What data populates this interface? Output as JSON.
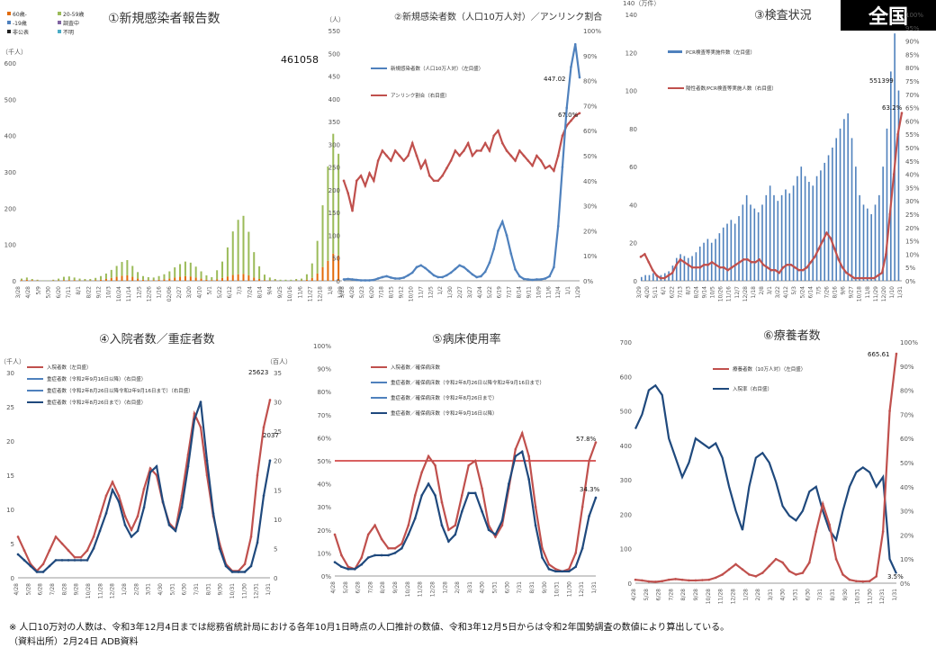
{
  "badge": "全国",
  "footnote": "※ 人口10万対の人数は、令和3年12月4日までは総務省統計局における各年10月1日時点の人口推計の数値、令和3年12月5日からは令和2年国勢調査の数値により算出している。",
  "source": "（資料出所）2月24日 ADB資料",
  "colors": {
    "red": "#c0504d",
    "blue": "#4f81bd",
    "green": "#9bbb59",
    "orange": "#e26b0a",
    "dark": "#1f497d"
  },
  "chart_data": [
    {
      "type": "bar",
      "title": "①新規感染者報告数",
      "ylabel": "（千人）",
      "ylim": [
        0,
        600
      ],
      "yticks": [
        "0",
        "100",
        "200",
        "300",
        "400",
        "500",
        "600"
      ],
      "xticks": [
        "3/28",
        "4/28",
        "5/9",
        "5/30",
        "6/20",
        "7/11",
        "8/1",
        "8/22",
        "9/12",
        "10/3",
        "10/24",
        "11/14",
        "12/5",
        "12/26",
        "1/16",
        "02/06",
        "2/27",
        "3/20",
        "4/10",
        "5/1",
        "5/22",
        "6/12",
        "7/3",
        "7/24",
        "8/14",
        "9/4",
        "9/25",
        "10/16",
        "11/6",
        "11/27",
        "12/18",
        "1/8",
        "1/29"
      ],
      "legend": [
        "60歳-",
        "20-59歳",
        "-19歳",
        "調査中",
        "非公表",
        "不明"
      ],
      "annotation": "461058",
      "series": [
        {
          "name": "20-59歳",
          "values": [
            4,
            6,
            3,
            2,
            1,
            1,
            2,
            5,
            9,
            10,
            7,
            5,
            4,
            4,
            6,
            10,
            15,
            22,
            30,
            38,
            42,
            30,
            18,
            10,
            8,
            7,
            10,
            14,
            20,
            28,
            35,
            40,
            38,
            30,
            20,
            12,
            8,
            25,
            45,
            80,
            120,
            150,
            160,
            120,
            70,
            35,
            15,
            8,
            4,
            3,
            3,
            3,
            4,
            5,
            15,
            40,
            90,
            170,
            260,
            330,
            280
          ]
        },
        {
          "name": "60歳-",
          "values": [
            2,
            3,
            2,
            1,
            0,
            0,
            1,
            1,
            2,
            2,
            2,
            1,
            1,
            1,
            2,
            3,
            5,
            8,
            11,
            14,
            15,
            11,
            6,
            3,
            2,
            2,
            3,
            4,
            6,
            9,
            11,
            13,
            12,
            9,
            6,
            3,
            2,
            4,
            8,
            12,
            16,
            18,
            19,
            15,
            9,
            5,
            2,
            1,
            1,
            0,
            0,
            0,
            1,
            1,
            3,
            8,
            20,
            38,
            55,
            75,
            70
          ]
        }
      ]
    },
    {
      "type": "line",
      "title": "②新規感染者数（人口10万人対）／アンリンク割合",
      "ylabel": "（人）",
      "ylim": [
        0,
        550
      ],
      "yticks": [
        "0",
        "50",
        "100",
        "150",
        "200",
        "250",
        "300",
        "350",
        "400",
        "450",
        "500",
        "550"
      ],
      "y2ticks": [
        "0%",
        "10%",
        "20%",
        "30%",
        "40%",
        "50%",
        "60%",
        "70%",
        "80%",
        "90%",
        "100%"
      ],
      "xticks": [
        "3/28",
        "4/28",
        "5/23",
        "6/20",
        "7/18",
        "8/15",
        "9/12",
        "10/10",
        "11/7",
        "12/5",
        "1/2",
        "1/30",
        "2/27",
        "3/27",
        "4/24",
        "5/22",
        "6/19",
        "7/17",
        "8/14",
        "9/11",
        "10/9",
        "11/6",
        "12/4",
        "1/1",
        "1/29"
      ],
      "legend": [
        "新規感染者数（人口10万人対）（左目盛）",
        "アンリンク割合（右目盛）"
      ],
      "annotations": [
        "447.02",
        "67.0%"
      ],
      "series": [
        {
          "name": "新規感染者数（人口10万人対）（左目盛）",
          "values": [
            3,
            4,
            3,
            2,
            1,
            1,
            1,
            2,
            5,
            8,
            10,
            7,
            5,
            5,
            7,
            12,
            18,
            30,
            34,
            28,
            20,
            12,
            8,
            8,
            12,
            18,
            26,
            34,
            30,
            22,
            14,
            8,
            10,
            20,
            40,
            70,
            110,
            130,
            100,
            60,
            25,
            10,
            4,
            3,
            2,
            3,
            3,
            5,
            10,
            30,
            120,
            250,
            380,
            470,
            520,
            447
          ]
        },
        {
          "name": "アンリンク割合（右目盛）",
          "values": [
            40,
            35,
            28,
            40,
            42,
            38,
            43,
            40,
            48,
            52,
            50,
            48,
            52,
            50,
            48,
            50,
            55,
            50,
            45,
            48,
            42,
            40,
            40,
            42,
            45,
            48,
            52,
            50,
            52,
            55,
            50,
            52,
            52,
            55,
            52,
            58,
            60,
            55,
            52,
            50,
            48,
            52,
            50,
            48,
            46,
            50,
            48,
            45,
            46,
            44,
            50,
            58,
            62,
            64,
            66,
            67
          ]
        }
      ]
    },
    {
      "type": "bar",
      "title": "③検査状況",
      "ylabel": "140（万件）",
      "ylim": [
        0,
        140
      ],
      "yticks": [
        "0",
        "20",
        "40",
        "60",
        "80",
        "100",
        "120",
        "140"
      ],
      "y2ticks": [
        "0%",
        "5%",
        "10%",
        "15%",
        "20%",
        "25%",
        "30%",
        "35%",
        "40%",
        "45%",
        "50%",
        "55%",
        "60%",
        "65%",
        "70%",
        "75%",
        "80%",
        "85%",
        "90%",
        "95%",
        "100%"
      ],
      "xticks": [
        "3/29",
        "4/20",
        "5/11",
        "6/1",
        "6/22",
        "7/13",
        "8/3",
        "8/24",
        "9/14",
        "10/5",
        "10/26",
        "11/16",
        "12/7",
        "12/28",
        "1/18",
        "2/8",
        "3/1",
        "3/22",
        "4/12",
        "5/3",
        "5/24",
        "6/14",
        "7/5",
        "7/26",
        "8/16",
        "9/6",
        "9/27",
        "10/18",
        "11/8",
        "11/29",
        "12/20",
        "1/10",
        "1/31"
      ],
      "legend": [
        "PCR検査等実施件数（左目盛）",
        "陽性者数/PCR検査等実施人数（右目盛）"
      ],
      "annotations": [
        "551399",
        "63.2%"
      ],
      "series": [
        {
          "name": "PCR検査等実施件数（左目盛）",
          "values": [
            2,
            3,
            3,
            4,
            3,
            3,
            4,
            5,
            8,
            12,
            14,
            13,
            12,
            13,
            15,
            18,
            20,
            22,
            20,
            22,
            25,
            28,
            30,
            32,
            30,
            34,
            40,
            45,
            40,
            38,
            36,
            40,
            45,
            50,
            45,
            42,
            45,
            48,
            46,
            50,
            55,
            60,
            55,
            52,
            50,
            55,
            58,
            62,
            66,
            70,
            75,
            80,
            85,
            88,
            75,
            60,
            45,
            40,
            38,
            35,
            40,
            45,
            60,
            80,
            110,
            130,
            100
          ]
        },
        {
          "name": "陽性者数/PCR検査等実施人数（右目盛）",
          "values": [
            9,
            10,
            7,
            4,
            2,
            1,
            1,
            2,
            3,
            6,
            8,
            7,
            6,
            5,
            5,
            5,
            6,
            6,
            7,
            6,
            5,
            5,
            4,
            5,
            6,
            7,
            8,
            8,
            7,
            7,
            8,
            6,
            5,
            4,
            4,
            3,
            5,
            6,
            6,
            5,
            4,
            4,
            5,
            7,
            9,
            12,
            15,
            18,
            16,
            12,
            8,
            5,
            3,
            2,
            1,
            1,
            1,
            1,
            1,
            1,
            2,
            3,
            10,
            25,
            40,
            55,
            63
          ]
        }
      ]
    },
    {
      "type": "line",
      "title": "④入院者数／重症者数",
      "ylabel": "（千人）",
      "ylim": [
        0,
        30
      ],
      "yticks": [
        "0",
        "5",
        "10",
        "15",
        "20",
        "25",
        "30"
      ],
      "y2label": "（百人）",
      "y2ticks": [
        "0",
        "5",
        "10",
        "15",
        "20",
        "25",
        "30",
        "35"
      ],
      "xticks": [
        "4/28",
        "5/28",
        "6/28",
        "7/28",
        "8/28",
        "9/28",
        "10/28",
        "11/28",
        "12/28",
        "1/28",
        "2/28",
        "3/31",
        "4/30",
        "5/31",
        "6/30",
        "7/31",
        "8/31",
        "9/30",
        "10/31",
        "11/30",
        "12/31",
        "1/31"
      ],
      "legend": [
        "入院者数（左目盛）",
        "重症者数（令和2年9月16日以降）（右目盛）",
        "重症者数（令和2年8月26日以降令和2年9月16日まで）（右目盛）",
        "重症者数（令和2年8月26日まで）（右目盛）"
      ],
      "annotations": [
        "25623",
        "2037"
      ],
      "series": [
        {
          "name": "入院者数（左目盛）",
          "values": [
            6,
            4,
            2,
            1,
            2,
            4,
            6,
            5,
            4,
            3,
            3,
            4,
            6,
            9,
            12,
            14,
            12,
            9,
            7,
            9,
            13,
            16,
            15,
            11,
            8,
            7,
            12,
            18,
            24,
            22,
            15,
            9,
            5,
            2,
            1,
            1,
            2,
            6,
            15,
            22,
            26
          ]
        },
        {
          "name": "重症者数（令和2年9月16日以降）（右目盛）",
          "values": [
            4,
            3,
            2,
            1,
            1,
            2,
            3,
            3,
            3,
            3,
            3,
            3,
            5,
            8,
            11,
            15,
            13,
            9,
            7,
            8,
            12,
            18,
            19,
            13,
            9,
            8,
            12,
            19,
            27,
            30,
            20,
            11,
            5,
            2,
            1,
            1,
            1,
            2,
            6,
            14,
            20
          ]
        }
      ]
    },
    {
      "type": "line",
      "title": "⑤病床使用率",
      "ylim": [
        0,
        100
      ],
      "yticks": [
        "0%",
        "10%",
        "20%",
        "30%",
        "40%",
        "50%",
        "60%",
        "70%",
        "80%",
        "90%",
        "100%"
      ],
      "xticks": [
        "4/28",
        "5/28",
        "6/28",
        "7/28",
        "8/28",
        "9/28",
        "10/28",
        "11/28",
        "12/28",
        "1/28",
        "2/28",
        "3/31",
        "4/30",
        "5/31",
        "6/30",
        "7/31",
        "8/31",
        "9/30",
        "10/31",
        "11/30",
        "12/31",
        "1/31"
      ],
      "legend": [
        "入院者数／確保病床数",
        "重症者数／確保病床数（令和2年8月26日以降令和2年9月16日まで）",
        "重症者数／確保病床数（令和2年8月26日まで）",
        "重症者数／確保病床数（令和2年9月16日以降）"
      ],
      "annotations": [
        "57.8%",
        "34.3%"
      ],
      "reference_line": 50,
      "series": [
        {
          "name": "入院者数／確保病床数",
          "values": [
            18,
            9,
            4,
            3,
            8,
            18,
            22,
            16,
            12,
            12,
            14,
            22,
            35,
            45,
            52,
            48,
            32,
            20,
            22,
            35,
            48,
            50,
            38,
            22,
            17,
            22,
            38,
            55,
            62,
            52,
            30,
            12,
            5,
            3,
            2,
            3,
            10,
            30,
            50,
            58
          ]
        },
        {
          "name": "重症者数／確保病床数（令和2年9月16日以降）",
          "values": [
            6,
            4,
            3,
            3,
            5,
            8,
            9,
            9,
            9,
            10,
            12,
            18,
            25,
            35,
            40,
            35,
            22,
            15,
            18,
            28,
            36,
            36,
            28,
            20,
            18,
            24,
            40,
            52,
            54,
            42,
            22,
            8,
            3,
            2,
            2,
            2,
            4,
            12,
            26,
            34
          ]
        }
      ]
    },
    {
      "type": "line",
      "title": "⑥療養者数",
      "ylim": [
        0,
        700
      ],
      "yticks": [
        "0",
        "100",
        "200",
        "300",
        "400",
        "500",
        "600",
        "700"
      ],
      "y2ticks": [
        "0%",
        "10%",
        "20%",
        "30%",
        "40%",
        "50%",
        "60%",
        "70%",
        "80%",
        "90%",
        "100%"
      ],
      "xticks": [
        "4/28",
        "5/28",
        "6/28",
        "7/28",
        "8/28",
        "9/28",
        "10/28",
        "11/28",
        "12/28",
        "1/28",
        "2/28",
        "3/31",
        "4/30",
        "5/31",
        "6/30",
        "7/31",
        "8/31",
        "9/30",
        "10/31",
        "11/30",
        "12/31",
        "1/31"
      ],
      "legend": [
        "療養者数（10万人対）（左目盛）",
        "入院率（右目盛）"
      ],
      "annotations": [
        "665.61",
        "3.5%"
      ],
      "series": [
        {
          "name": "療養者数（10万人対）（左目盛）",
          "values": [
            10,
            8,
            5,
            4,
            6,
            10,
            12,
            10,
            8,
            8,
            9,
            10,
            16,
            25,
            40,
            55,
            40,
            25,
            20,
            30,
            50,
            70,
            60,
            35,
            25,
            30,
            60,
            150,
            230,
            170,
            70,
            25,
            10,
            6,
            5,
            6,
            20,
            150,
            500,
            666
          ]
        },
        {
          "name": "入院率（右目盛）",
          "values": [
            64,
            70,
            80,
            82,
            78,
            60,
            52,
            44,
            50,
            60,
            58,
            56,
            58,
            52,
            40,
            30,
            22,
            40,
            52,
            54,
            50,
            42,
            32,
            28,
            26,
            30,
            38,
            40,
            30,
            22,
            18,
            30,
            40,
            46,
            48,
            46,
            40,
            44,
            10,
            4
          ]
        }
      ]
    }
  ]
}
